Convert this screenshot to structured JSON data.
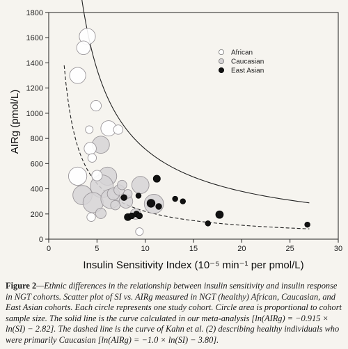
{
  "chart_data": {
    "type": "scatter",
    "xlabel": "Insulin Sensitivity Index (10⁻⁵ min⁻¹ per pmol/L)",
    "ylabel": "AIRg (pmol/L)",
    "xlim": [
      0,
      30
    ],
    "ylim": [
      0,
      1800
    ],
    "xticks": [
      0,
      5,
      10,
      15,
      20,
      25,
      30
    ],
    "yticks": [
      0,
      200,
      400,
      600,
      800,
      1000,
      1200,
      1400,
      1600,
      1800
    ],
    "grid": false,
    "legend_position": "top-right",
    "series": [
      {
        "name": "African",
        "color": "#ffffff",
        "points": [
          {
            "x": 4.0,
            "y": 1610,
            "size": 3.5
          },
          {
            "x": 3.6,
            "y": 1520,
            "size": 2.5
          },
          {
            "x": 3.0,
            "y": 1300,
            "size": 3.5
          },
          {
            "x": 4.9,
            "y": 1060,
            "size": 1.5
          },
          {
            "x": 4.2,
            "y": 870,
            "size": 0.8
          },
          {
            "x": 6.2,
            "y": 880,
            "size": 3.2
          },
          {
            "x": 7.2,
            "y": 870,
            "size": 1.2
          },
          {
            "x": 4.3,
            "y": 720,
            "size": 2.0
          },
          {
            "x": 4.5,
            "y": 645,
            "size": 1.0
          },
          {
            "x": 3.0,
            "y": 500,
            "size": 4.5
          },
          {
            "x": 5.0,
            "y": 505,
            "size": 1.5
          },
          {
            "x": 4.4,
            "y": 175,
            "size": 1.0
          },
          {
            "x": 9.4,
            "y": 60,
            "size": 0.8
          }
        ]
      },
      {
        "name": "Caucasian",
        "color": "#d6d3d6",
        "points": [
          {
            "x": 5.4,
            "y": 750,
            "size": 4.0
          },
          {
            "x": 6.1,
            "y": 500,
            "size": 4.5
          },
          {
            "x": 5.5,
            "y": 420,
            "size": 7.0
          },
          {
            "x": 3.5,
            "y": 350,
            "size": 5.0
          },
          {
            "x": 4.6,
            "y": 290,
            "size": 5.5
          },
          {
            "x": 6.4,
            "y": 320,
            "size": 5.0
          },
          {
            "x": 6.7,
            "y": 360,
            "size": 2.0
          },
          {
            "x": 7.3,
            "y": 390,
            "size": 1.5
          },
          {
            "x": 7.6,
            "y": 430,
            "size": 1.2
          },
          {
            "x": 8.0,
            "y": 300,
            "size": 2.5
          },
          {
            "x": 8.2,
            "y": 360,
            "size": 1.0
          },
          {
            "x": 9.5,
            "y": 430,
            "size": 4.0
          },
          {
            "x": 10.9,
            "y": 280,
            "size": 5.0
          },
          {
            "x": 5.4,
            "y": 205,
            "size": 1.5
          },
          {
            "x": 9.0,
            "y": 200,
            "size": 1.5
          },
          {
            "x": 6.9,
            "y": 270,
            "size": 1.2
          }
        ]
      },
      {
        "name": "East Asian",
        "color": "#111111",
        "points": [
          {
            "x": 7.8,
            "y": 330,
            "size": 0.5
          },
          {
            "x": 8.2,
            "y": 175,
            "size": 0.7
          },
          {
            "x": 8.6,
            "y": 185,
            "size": 0.5
          },
          {
            "x": 9.1,
            "y": 200,
            "size": 0.5
          },
          {
            "x": 9.4,
            "y": 185,
            "size": 0.5
          },
          {
            "x": 9.3,
            "y": 345,
            "size": 0.4
          },
          {
            "x": 11.2,
            "y": 480,
            "size": 0.7
          },
          {
            "x": 10.6,
            "y": 285,
            "size": 0.9
          },
          {
            "x": 11.4,
            "y": 260,
            "size": 0.5
          },
          {
            "x": 13.1,
            "y": 320,
            "size": 0.4
          },
          {
            "x": 13.9,
            "y": 300,
            "size": 0.4
          },
          {
            "x": 16.5,
            "y": 125,
            "size": 0.4
          },
          {
            "x": 17.7,
            "y": 195,
            "size": 0.8
          },
          {
            "x": 26.8,
            "y": 115,
            "size": 0.4
          }
        ]
      }
    ],
    "curves": [
      {
        "style": "solid",
        "equation": "ln(AIRg) = -0.915 × ln(SI) - 2.82",
        "a": -0.915,
        "b": 8.68,
        "x_start": 1.5,
        "x_end": 27.0
      },
      {
        "style": "dashed",
        "equation": "ln(AIRg) = -1.0 × ln(SI) - 3.80",
        "a": -1.0,
        "b": 7.7,
        "x_start": 1.6,
        "x_end": 27.0
      }
    ]
  },
  "caption": {
    "label": "Figure 2",
    "text": "—Ethnic differences in the relationship between insulin sensitivity and insulin response in NGT cohorts. Scatter plot of SI vs. AIRg measured in NGT (healthy) African, Caucasian, and East Asian cohorts. Each circle represents one study cohort. Circle area is proportional to cohort sample size. The solid line is the curve calculated in our meta-analysis [ln(AIRg) = −0.915 × ln(SI) − 2.82]. The dashed line is the curve of Kahn et al. (2) describing healthy individuals who were primarily Caucasian [ln(AIRg) = −1.0 × ln(SI) − 3.80]."
  }
}
